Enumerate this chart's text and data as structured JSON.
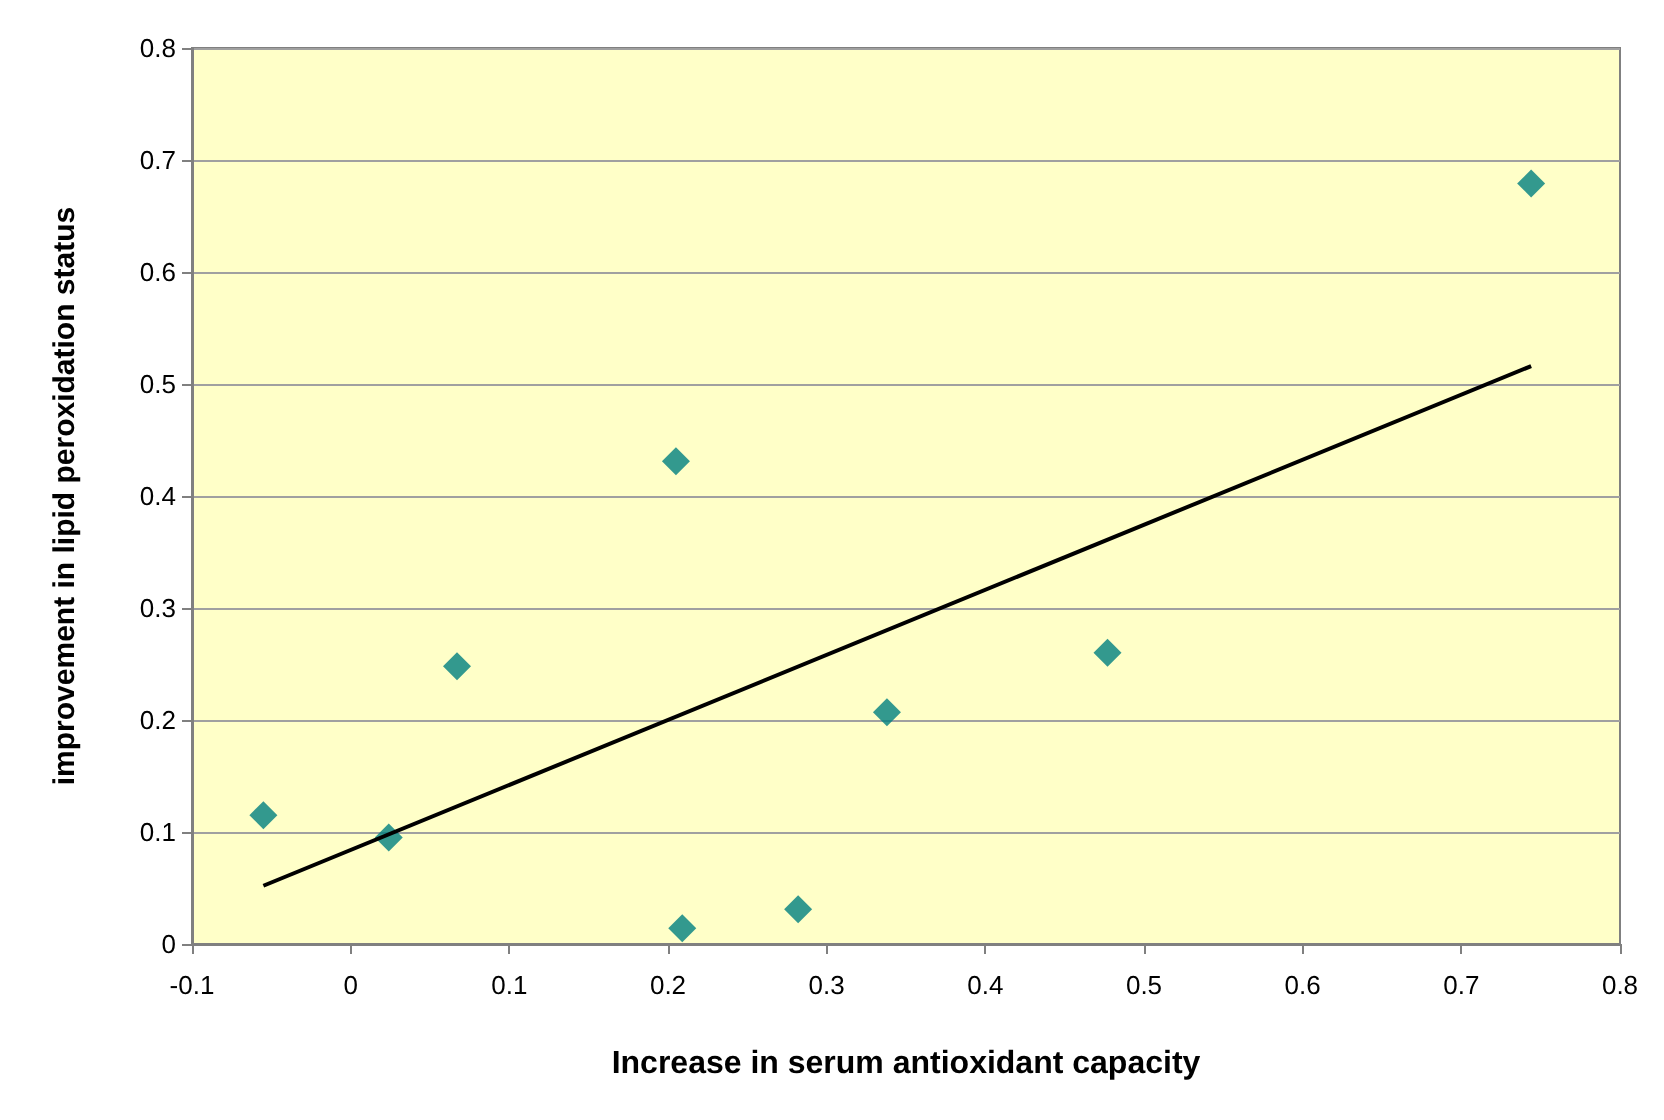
{
  "chart_data": {
    "type": "scatter",
    "xlabel": "Increase in serum antioxidant capacity",
    "ylabel": "improvement in lipid peroxidation status",
    "xlim": [
      -0.1,
      0.8
    ],
    "xticks": [
      -0.1,
      0,
      0.1,
      0.2,
      0.3,
      0.4,
      0.5,
      0.6,
      0.7,
      0.8
    ],
    "ylim": [
      0,
      0.8
    ],
    "yticks": [
      0,
      0.1,
      0.2,
      0.3,
      0.4,
      0.5,
      0.6,
      0.7,
      0.8
    ],
    "grid": "y",
    "series": [
      {
        "color": "#008080",
        "marker": "diamond",
        "x": [
          -0.055,
          0.024,
          0.067,
          0.205,
          0.209,
          0.282,
          0.338,
          0.477,
          0.744
        ],
        "values": [
          0.115,
          0.095,
          0.248,
          0.431,
          0.014,
          0.031,
          0.207,
          0.26,
          0.679
        ]
      },
      {
        "type": "line",
        "color": "#000000",
        "marker": "none",
        "x": [
          -0.055,
          0.744
        ],
        "values": [
          0.052,
          0.516
        ]
      }
    ]
  }
}
